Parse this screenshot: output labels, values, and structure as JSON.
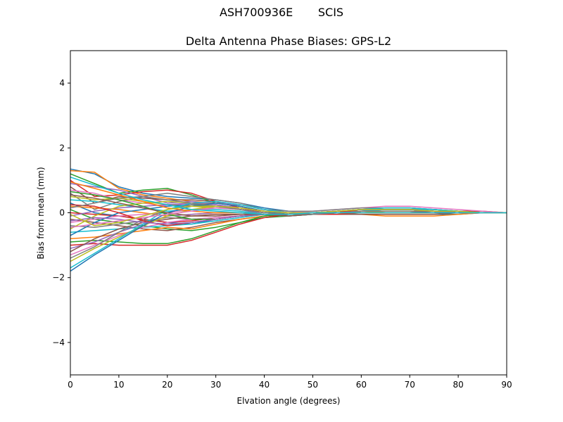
{
  "figure": {
    "suptitle": "ASH700936E       SCIS"
  },
  "chart_data": {
    "type": "line",
    "title": "Delta Antenna Phase Biases: GPS-L2",
    "xlabel": "Elvation angle (degrees)",
    "ylabel": "Bias from mean (mm)",
    "xlim": [
      0,
      90
    ],
    "ylim": [
      -5,
      5
    ],
    "xticks": [
      0,
      10,
      20,
      30,
      40,
      50,
      60,
      70,
      80,
      90
    ],
    "yticks": [
      -4,
      -2,
      0,
      2,
      4
    ],
    "ytick_labels": [
      "−4",
      "−2",
      "0",
      "2",
      "4"
    ],
    "grid": false,
    "x": [
      0,
      5,
      10,
      15,
      20,
      25,
      30,
      35,
      40,
      45,
      50,
      55,
      60,
      65,
      70,
      75,
      80,
      85,
      90
    ],
    "palette": [
      "#1f77b4",
      "#ff7f0e",
      "#2ca02c",
      "#d62728",
      "#9467bd",
      "#8c564b",
      "#e377c2",
      "#7f7f7f",
      "#bcbd22",
      "#17becf"
    ],
    "series": [
      {
        "values": [
          1.35,
          1.2,
          0.8,
          0.6,
          0.5,
          0.45,
          0.4,
          0.3,
          0.15,
          0.05,
          0.0,
          -0.05,
          -0.05,
          -0.05,
          -0.05,
          -0.05,
          -0.05,
          0.0,
          0.0
        ]
      },
      {
        "values": [
          1.3,
          1.25,
          0.75,
          0.55,
          0.45,
          0.35,
          0.3,
          0.25,
          0.1,
          0.0,
          -0.05,
          -0.05,
          -0.05,
          -0.1,
          -0.1,
          -0.1,
          -0.05,
          0.0,
          0.0
        ]
      },
      {
        "values": [
          1.2,
          0.9,
          0.6,
          0.7,
          0.75,
          0.55,
          0.3,
          0.2,
          0.05,
          -0.05,
          -0.05,
          0.0,
          0.05,
          0.05,
          0.05,
          0.05,
          0.05,
          0.0,
          0.0
        ]
      },
      {
        "values": [
          1.0,
          0.5,
          0.55,
          0.65,
          0.7,
          0.6,
          0.35,
          0.15,
          0.0,
          -0.05,
          0.0,
          0.05,
          0.1,
          0.1,
          0.1,
          0.1,
          0.05,
          0.05,
          0.0
        ]
      },
      {
        "values": [
          0.9,
          0.8,
          0.7,
          0.5,
          0.3,
          0.35,
          0.25,
          0.1,
          -0.05,
          -0.1,
          -0.05,
          0.0,
          0.05,
          0.1,
          0.1,
          0.05,
          0.05,
          0.0,
          0.0
        ]
      },
      {
        "values": [
          0.8,
          0.3,
          0.5,
          0.45,
          0.4,
          0.4,
          0.35,
          0.2,
          0.05,
          0.0,
          0.0,
          0.05,
          0.1,
          0.15,
          0.15,
          0.1,
          0.05,
          0.0,
          0.0
        ]
      },
      {
        "values": [
          0.7,
          0.6,
          0.4,
          0.3,
          0.2,
          0.3,
          0.3,
          0.25,
          0.1,
          0.0,
          0.05,
          0.1,
          0.15,
          0.2,
          0.2,
          0.15,
          0.1,
          0.05,
          0.0
        ]
      },
      {
        "values": [
          0.6,
          0.1,
          0.35,
          0.5,
          0.6,
          0.5,
          0.4,
          0.3,
          0.1,
          0.05,
          0.05,
          0.1,
          0.15,
          0.15,
          0.15,
          0.1,
          0.05,
          0.0,
          0.0
        ]
      },
      {
        "values": [
          0.5,
          0.4,
          0.45,
          0.35,
          0.25,
          0.2,
          0.15,
          0.1,
          0.0,
          -0.05,
          -0.05,
          0.0,
          0.0,
          0.05,
          0.05,
          0.05,
          0.0,
          0.0,
          0.0
        ]
      },
      {
        "values": [
          0.4,
          0.35,
          0.25,
          0.15,
          0.05,
          0.1,
          0.1,
          0.05,
          -0.05,
          -0.1,
          -0.05,
          0.0,
          0.05,
          0.1,
          0.1,
          0.1,
          0.05,
          0.0,
          0.0
        ]
      },
      {
        "values": [
          0.3,
          0.0,
          -0.1,
          -0.2,
          -0.3,
          -0.35,
          -0.2,
          -0.1,
          -0.05,
          -0.05,
          0.0,
          0.05,
          0.1,
          0.1,
          0.1,
          0.05,
          0.05,
          0.0,
          0.0
        ]
      },
      {
        "values": [
          0.2,
          0.15,
          0.1,
          0.0,
          -0.1,
          -0.05,
          0.0,
          0.0,
          -0.05,
          -0.05,
          0.0,
          0.05,
          0.1,
          0.1,
          0.1,
          0.05,
          0.0,
          0.0,
          0.0
        ]
      },
      {
        "values": [
          0.1,
          -0.2,
          -0.3,
          -0.4,
          -0.5,
          -0.55,
          -0.45,
          -0.3,
          -0.15,
          -0.1,
          -0.05,
          0.0,
          0.05,
          0.05,
          0.05,
          0.05,
          0.0,
          0.0,
          0.0
        ]
      },
      {
        "values": [
          0.0,
          -0.05,
          -0.1,
          -0.2,
          -0.3,
          -0.25,
          -0.15,
          -0.1,
          -0.05,
          -0.05,
          -0.05,
          0.0,
          0.05,
          0.05,
          0.05,
          0.05,
          0.0,
          0.0,
          0.0
        ]
      },
      {
        "values": [
          -0.1,
          0.05,
          0.15,
          0.2,
          0.25,
          0.3,
          0.25,
          0.15,
          0.05,
          0.0,
          0.0,
          0.05,
          0.1,
          0.1,
          0.1,
          0.05,
          0.05,
          0.0,
          0.0
        ]
      },
      {
        "values": [
          -0.2,
          -0.3,
          -0.4,
          -0.5,
          -0.55,
          -0.45,
          -0.3,
          -0.2,
          -0.1,
          -0.05,
          -0.05,
          -0.05,
          -0.05,
          -0.05,
          -0.05,
          -0.05,
          0.0,
          0.0,
          0.0
        ]
      },
      {
        "values": [
          -0.3,
          -0.2,
          -0.1,
          -0.05,
          0.0,
          0.1,
          0.15,
          0.1,
          0.0,
          -0.05,
          -0.05,
          0.0,
          0.05,
          0.05,
          0.05,
          0.05,
          0.0,
          0.0,
          0.0
        ]
      },
      {
        "values": [
          -0.4,
          -0.45,
          -0.35,
          -0.25,
          -0.15,
          -0.2,
          -0.15,
          -0.1,
          -0.05,
          -0.05,
          0.0,
          0.0,
          0.05,
          0.05,
          0.05,
          0.0,
          0.0,
          0.0,
          0.0
        ]
      },
      {
        "values": [
          -0.5,
          -0.1,
          0.2,
          0.3,
          0.35,
          0.3,
          0.2,
          0.1,
          0.0,
          -0.05,
          -0.05,
          0.0,
          0.0,
          0.05,
          0.05,
          0.05,
          0.0,
          0.0,
          0.0
        ]
      },
      {
        "values": [
          -0.6,
          -0.55,
          -0.5,
          -0.45,
          -0.4,
          -0.35,
          -0.25,
          -0.15,
          -0.05,
          -0.05,
          0.0,
          0.05,
          0.05,
          0.1,
          0.1,
          0.05,
          0.05,
          0.0,
          0.0
        ]
      },
      {
        "values": [
          -0.7,
          -0.3,
          0.0,
          0.1,
          0.2,
          0.25,
          0.2,
          0.1,
          0.0,
          0.0,
          0.0,
          0.05,
          0.1,
          0.1,
          0.1,
          0.05,
          0.05,
          0.0,
          0.0
        ]
      },
      {
        "values": [
          -0.8,
          -0.75,
          -0.65,
          -0.55,
          -0.45,
          -0.5,
          -0.35,
          -0.2,
          -0.1,
          -0.05,
          -0.05,
          0.0,
          0.0,
          0.0,
          0.0,
          0.0,
          0.0,
          0.0,
          0.0
        ]
      },
      {
        "values": [
          -0.9,
          -0.85,
          -0.9,
          -0.95,
          -0.95,
          -0.8,
          -0.55,
          -0.3,
          -0.1,
          -0.05,
          -0.05,
          -0.05,
          0.0,
          0.0,
          0.0,
          0.0,
          0.0,
          0.0,
          0.0
        ]
      },
      {
        "values": [
          -1.0,
          -0.95,
          -1.0,
          -1.0,
          -1.0,
          -0.85,
          -0.6,
          -0.35,
          -0.15,
          -0.05,
          -0.05,
          -0.05,
          0.0,
          0.0,
          0.0,
          0.0,
          0.0,
          0.0,
          0.0
        ]
      },
      {
        "values": [
          -1.1,
          -0.9,
          -0.6,
          -0.35,
          -0.1,
          -0.05,
          0.0,
          0.0,
          -0.05,
          -0.05,
          0.0,
          0.05,
          0.1,
          0.1,
          0.1,
          0.05,
          0.05,
          0.0,
          0.0
        ]
      },
      {
        "values": [
          -1.2,
          -0.8,
          -0.5,
          -0.3,
          -0.2,
          -0.1,
          -0.05,
          -0.05,
          -0.05,
          -0.05,
          0.0,
          0.05,
          0.05,
          0.05,
          0.05,
          0.05,
          0.0,
          0.0,
          0.0
        ]
      },
      {
        "values": [
          -1.3,
          -1.0,
          -0.7,
          -0.45,
          -0.3,
          -0.2,
          -0.15,
          -0.1,
          -0.05,
          -0.05,
          0.0,
          0.0,
          0.05,
          0.05,
          0.05,
          0.0,
          0.0,
          0.0,
          0.0
        ]
      },
      {
        "values": [
          -1.4,
          -1.05,
          -0.6,
          -0.2,
          0.1,
          0.25,
          0.3,
          0.2,
          0.05,
          0.0,
          0.0,
          0.05,
          0.1,
          0.1,
          0.1,
          0.05,
          0.05,
          0.0,
          0.0
        ]
      },
      {
        "values": [
          -1.5,
          -1.1,
          -0.75,
          -0.4,
          -0.1,
          0.1,
          0.2,
          0.15,
          0.05,
          0.0,
          0.0,
          0.0,
          0.05,
          0.05,
          0.05,
          0.05,
          0.0,
          0.0,
          0.0
        ]
      },
      {
        "values": [
          -1.7,
          -1.25,
          -0.8,
          -0.35,
          0.1,
          0.3,
          0.35,
          0.25,
          0.1,
          0.0,
          0.0,
          0.05,
          0.1,
          0.15,
          0.15,
          0.1,
          0.05,
          0.0,
          0.0
        ]
      },
      {
        "values": [
          -1.8,
          -1.3,
          -0.85,
          -0.4,
          0.0,
          0.2,
          0.3,
          0.2,
          0.05,
          0.0,
          0.0,
          0.0,
          0.05,
          0.05,
          0.05,
          0.05,
          0.0,
          0.0,
          0.0
        ]
      },
      {
        "values": [
          0.95,
          0.75,
          0.55,
          0.35,
          0.15,
          0.05,
          0.0,
          0.0,
          -0.05,
          -0.05,
          -0.05,
          0.0,
          0.0,
          0.0,
          0.0,
          0.0,
          0.0,
          0.0,
          0.0
        ]
      },
      {
        "values": [
          0.65,
          0.55,
          0.4,
          0.2,
          -0.05,
          -0.2,
          -0.2,
          -0.1,
          -0.05,
          -0.05,
          0.0,
          0.0,
          0.05,
          0.05,
          0.05,
          0.05,
          0.0,
          0.0,
          0.0
        ]
      },
      {
        "values": [
          0.25,
          0.2,
          0.0,
          -0.25,
          -0.4,
          -0.3,
          -0.2,
          -0.1,
          -0.05,
          -0.05,
          0.0,
          0.05,
          0.05,
          0.05,
          0.05,
          0.05,
          0.0,
          0.0,
          0.0
        ]
      },
      {
        "values": [
          -0.25,
          -0.15,
          -0.2,
          -0.3,
          -0.35,
          -0.3,
          -0.2,
          -0.1,
          -0.05,
          -0.05,
          0.0,
          0.0,
          0.05,
          0.05,
          0.05,
          0.05,
          0.0,
          0.0,
          0.0
        ]
      },
      {
        "values": [
          0.55,
          0.45,
          0.3,
          0.15,
          0.0,
          -0.1,
          -0.1,
          -0.05,
          -0.05,
          -0.1,
          -0.05,
          0.0,
          0.05,
          0.05,
          0.05,
          0.0,
          0.0,
          0.0,
          0.0
        ]
      },
      {
        "values": [
          -0.45,
          -0.35,
          -0.25,
          -0.15,
          -0.05,
          0.05,
          0.15,
          0.15,
          0.05,
          0.0,
          0.0,
          0.0,
          0.05,
          0.05,
          0.05,
          0.05,
          0.0,
          0.0,
          0.0
        ]
      },
      {
        "values": [
          0.15,
          0.3,
          0.45,
          0.5,
          0.4,
          0.3,
          0.2,
          0.1,
          0.0,
          -0.05,
          -0.05,
          0.0,
          0.05,
          0.05,
          0.05,
          0.05,
          0.0,
          0.0,
          0.0
        ]
      },
      {
        "values": [
          -0.05,
          -0.4,
          -0.3,
          -0.1,
          0.1,
          0.2,
          0.2,
          0.15,
          0.05,
          0.0,
          0.0,
          0.05,
          0.1,
          0.1,
          0.1,
          0.05,
          0.05,
          0.0,
          0.0
        ]
      },
      {
        "values": [
          1.1,
          0.85,
          0.6,
          0.4,
          0.25,
          0.1,
          0.05,
          0.0,
          -0.05,
          -0.05,
          0.0,
          0.0,
          0.0,
          0.0,
          0.0,
          0.0,
          0.0,
          0.0,
          0.0
        ]
      }
    ]
  }
}
